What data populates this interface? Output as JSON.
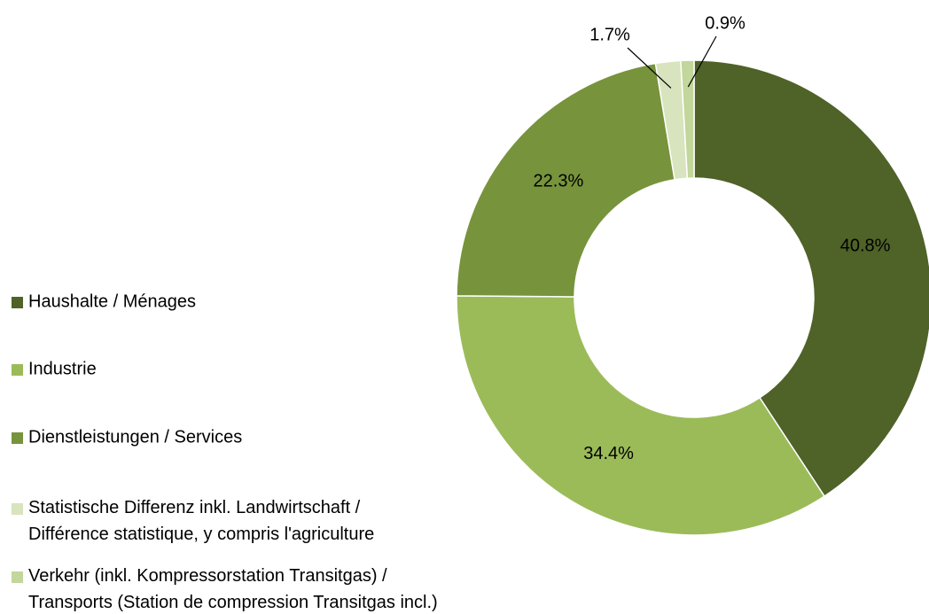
{
  "chart_data": {
    "type": "donut",
    "categories": [
      "Haushalte / Ménages",
      "Industrie",
      "Dienstleistungen / Services",
      "Statistische Differenz inkl. Landwirtschaft / Différence statistique, y compris l'agriculture",
      "Verkehr (inkl. Kompressorstation Transitgas) / Transports (Station de compression Transitgas incl.)"
    ],
    "values": [
      40.8,
      34.4,
      22.3,
      1.7,
      0.9
    ],
    "value_labels": [
      "40.8%",
      "34.4%",
      "22.3%",
      "1.7%",
      "0.9%"
    ],
    "colors": [
      "#4f6228",
      "#9bbb59",
      "#77933c",
      "#d7e4bd",
      "#c3d69b"
    ],
    "legend": "left"
  }
}
